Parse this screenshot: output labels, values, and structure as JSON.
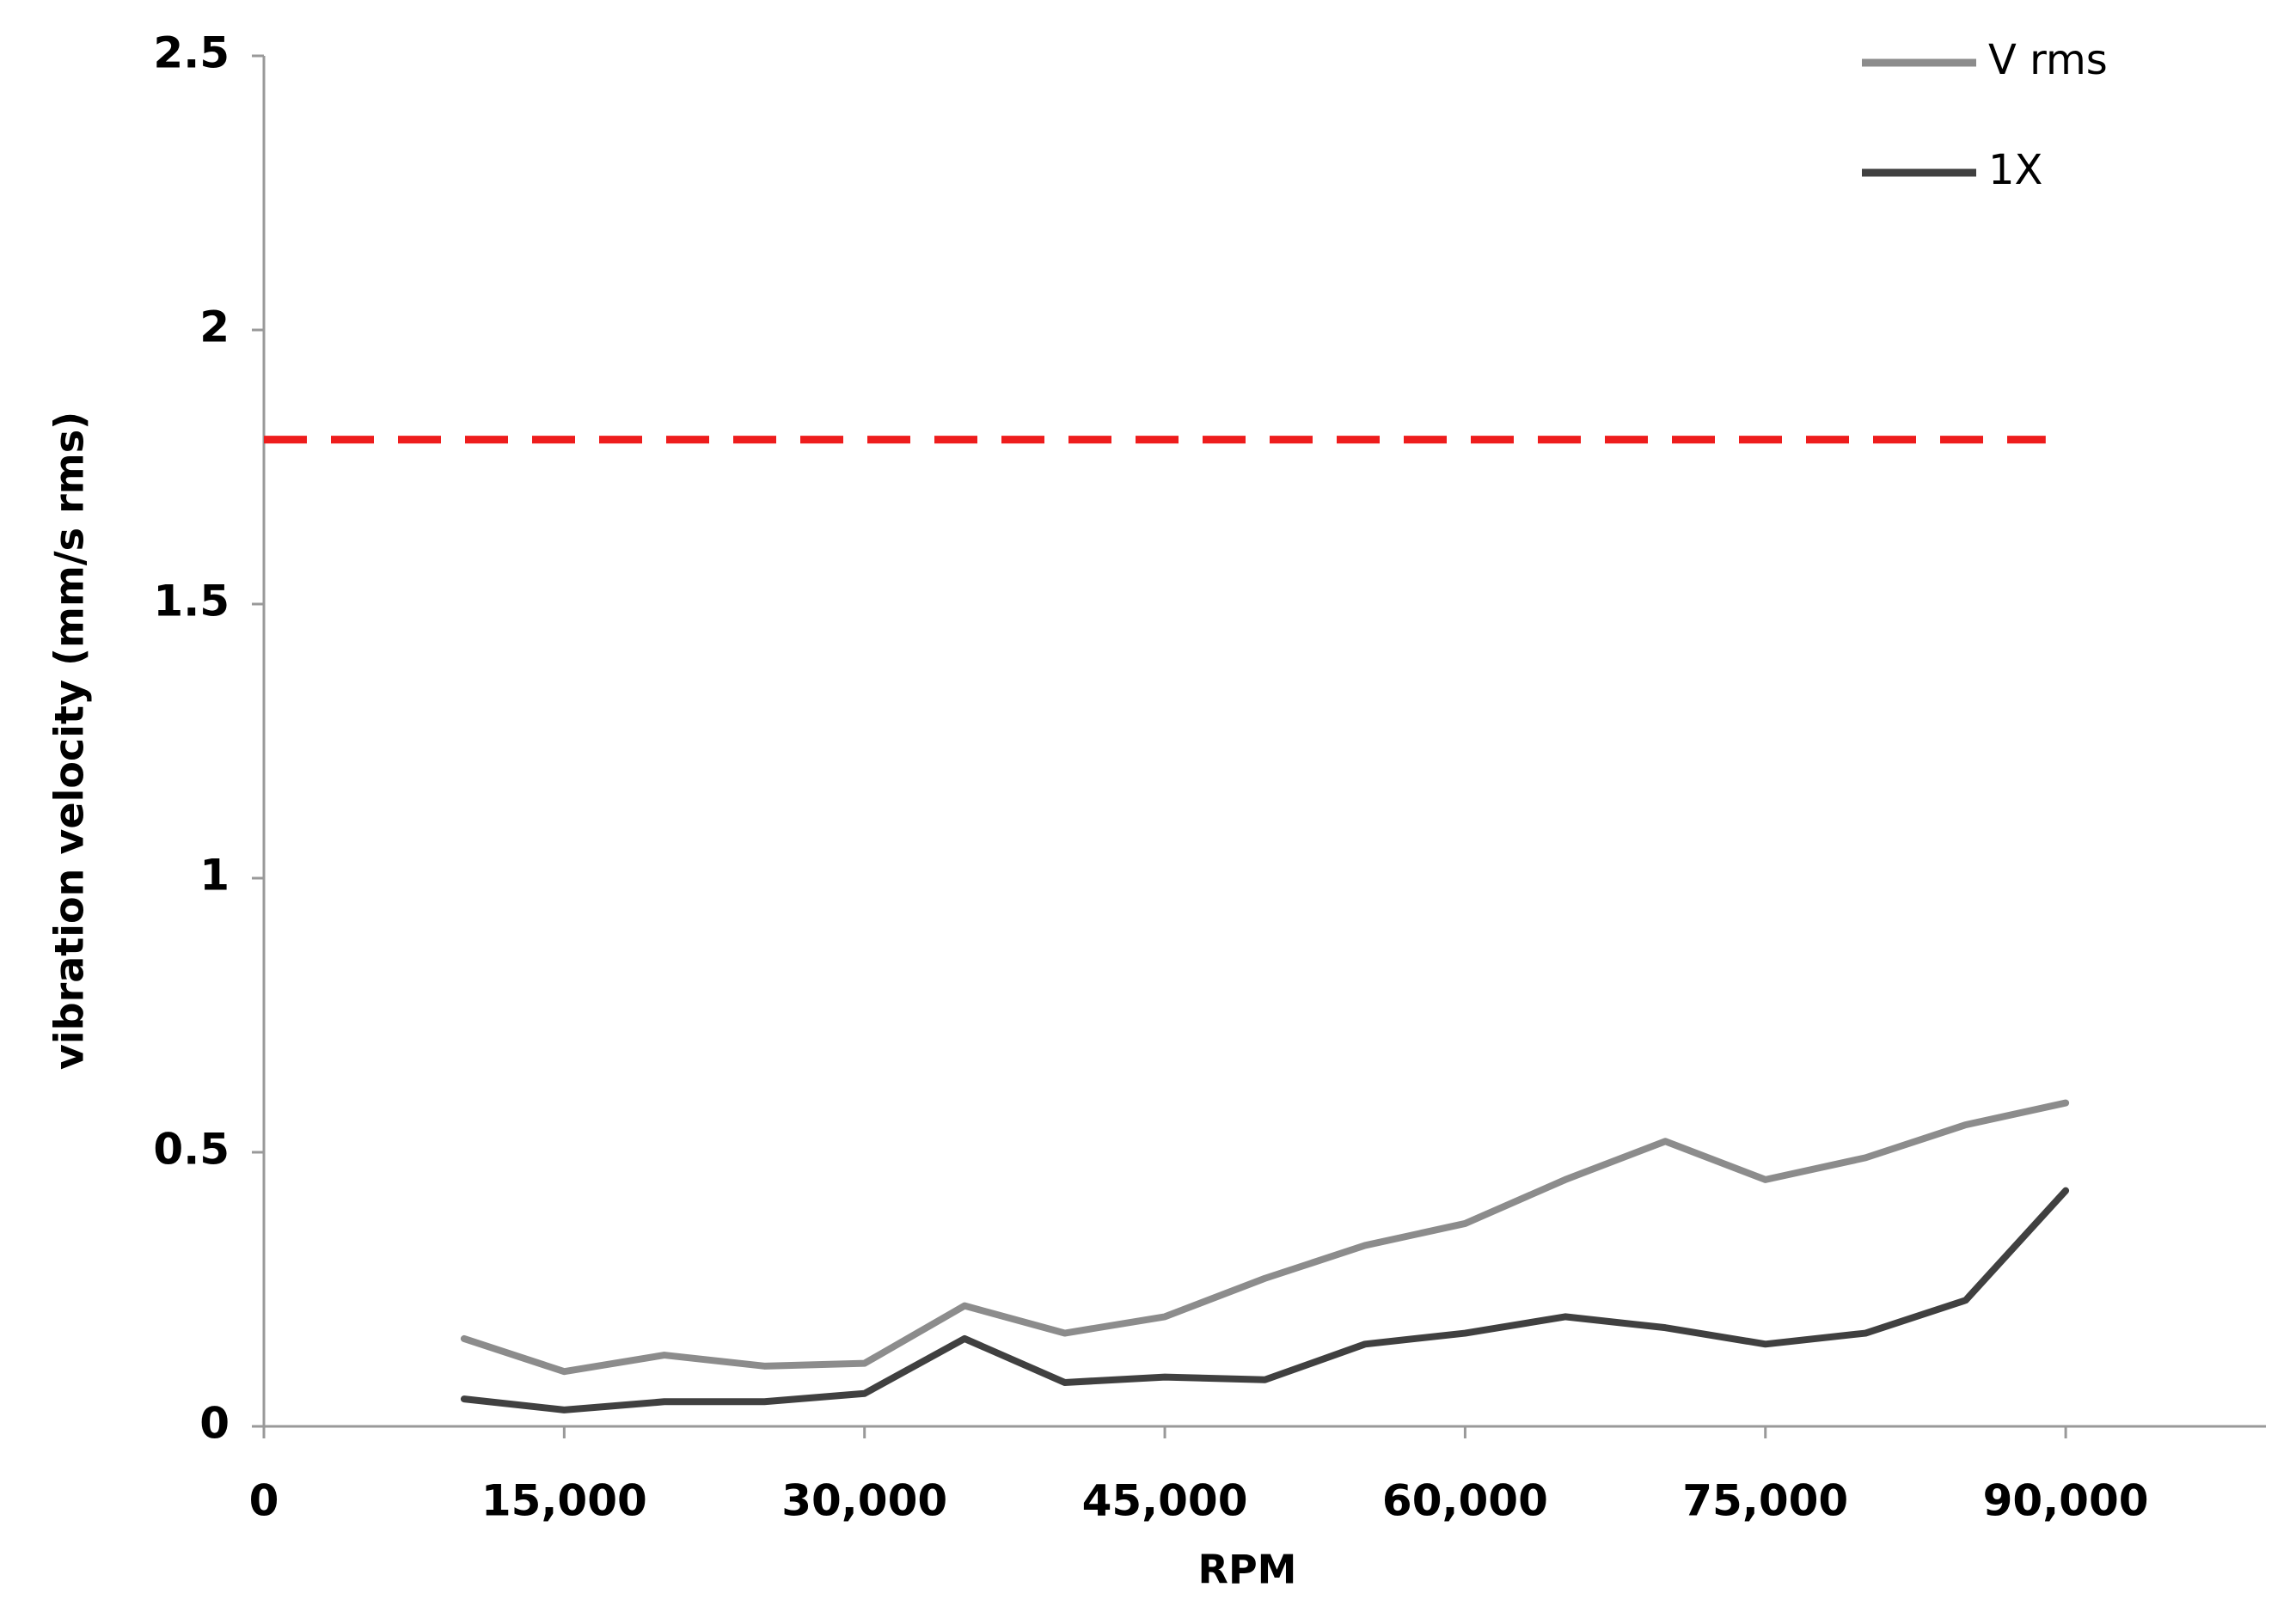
{
  "chart_data": {
    "type": "line",
    "x_label": "RPM",
    "y_label": "vibration velocity (mm/s rms)",
    "x": [
      10000,
      15000,
      20000,
      25000,
      30000,
      35000,
      40000,
      45000,
      50000,
      55000,
      60000,
      65000,
      70000,
      75000,
      80000,
      85000,
      90000
    ],
    "series": [
      {
        "name": "V rms",
        "color": "#8c8c8c",
        "values": [
          0.16,
          0.1,
          0.13,
          0.11,
          0.115,
          0.22,
          0.17,
          0.2,
          0.27,
          0.33,
          0.37,
          0.45,
          0.52,
          0.45,
          0.49,
          0.55,
          0.59
        ]
      },
      {
        "name": "1X",
        "color": "#404040",
        "values": [
          0.05,
          0.03,
          0.045,
          0.045,
          0.06,
          0.16,
          0.08,
          0.09,
          0.085,
          0.15,
          0.17,
          0.2,
          0.18,
          0.15,
          0.17,
          0.23,
          0.43
        ]
      }
    ],
    "reference_line": {
      "y": 1.8,
      "color": "#ee1c1c",
      "style": "dashed"
    },
    "xlim": [
      0,
      100000
    ],
    "xticks": [
      0,
      {
        "value": 15000,
        "label": "15,000"
      },
      {
        "value": 30000,
        "label": "30,000"
      },
      {
        "value": 45000,
        "label": "45,000"
      },
      {
        "value": 60000,
        "label": "60,000"
      },
      {
        "value": 75000,
        "label": "75,000"
      },
      {
        "value": 90000,
        "label": "90,000"
      }
    ],
    "ylim": [
      0,
      2.5
    ],
    "yticks": [
      0,
      0.5,
      1,
      1.5,
      2,
      2.5
    ],
    "grid": false,
    "legend": "top-right"
  }
}
